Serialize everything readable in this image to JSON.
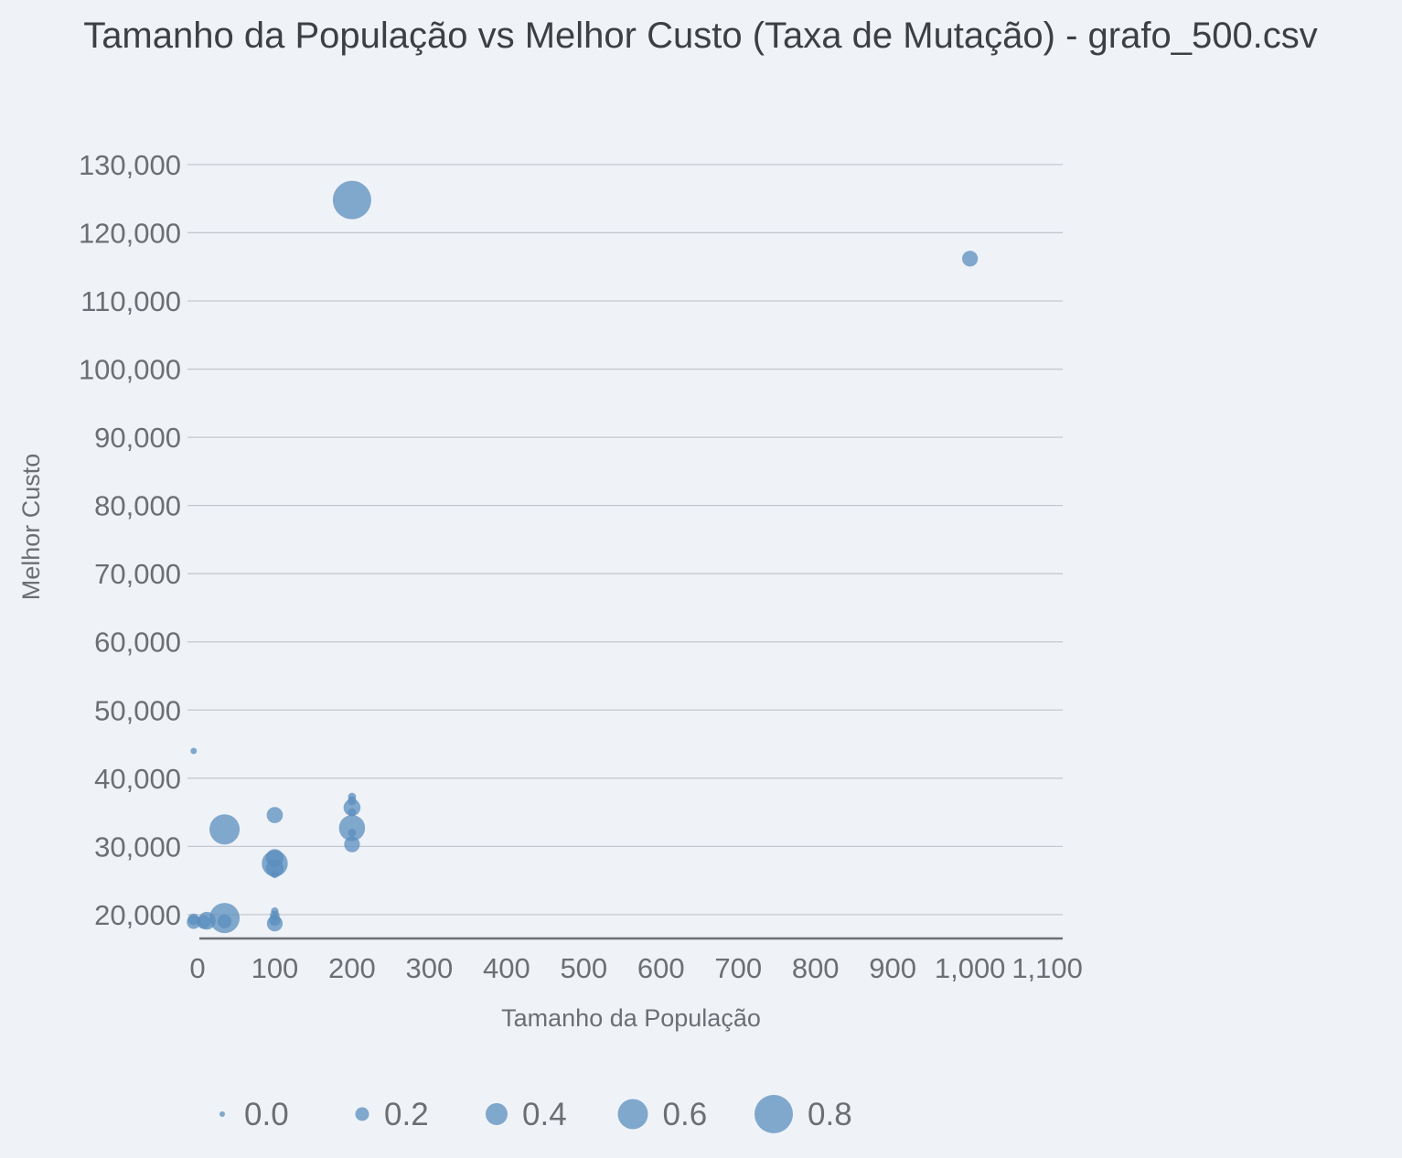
{
  "chart_data": {
    "type": "scatter",
    "title": "Tamanho da População vs Melhor Custo (Taxa de Mutação) - grafo_500.csv",
    "xlabel": "Tamanho da População",
    "ylabel": "Melhor Custo",
    "size_encoding": "Taxa de Mutação",
    "xlim": [
      -13,
      1120
    ],
    "ylim": [
      16500,
      132000
    ],
    "x_ticks": [
      0,
      100,
      200,
      300,
      400,
      500,
      600,
      700,
      800,
      900,
      1000,
      1100
    ],
    "x_tick_labels": [
      "0",
      "100",
      "200",
      "300",
      "400",
      "500",
      "600",
      "700",
      "800",
      "900",
      "1,000",
      "1,100"
    ],
    "y_ticks": [
      20000,
      30000,
      40000,
      50000,
      60000,
      70000,
      80000,
      90000,
      100000,
      110000,
      120000,
      130000
    ],
    "y_tick_labels": [
      "20,000",
      "30,000",
      "40,000",
      "50,000",
      "60,000",
      "70,000",
      "80,000",
      "90,000",
      "100,000",
      "110,000",
      "120,000",
      "130,000"
    ],
    "grid": true,
    "legend_position": "bottom",
    "legend": [
      {
        "label": "0.0",
        "size": 0.0
      },
      {
        "label": "0.2",
        "size": 0.2
      },
      {
        "label": "0.4",
        "size": 0.4
      },
      {
        "label": "0.6",
        "size": 0.6
      },
      {
        "label": "0.8",
        "size": 0.8
      }
    ],
    "point_color": "#5b8dbd",
    "points": [
      {
        "x": 200,
        "y": 124800,
        "size": 0.8
      },
      {
        "x": 1000,
        "y": 116200,
        "size": 0.25
      },
      {
        "x": -5,
        "y": 44000,
        "size": 0.02
      },
      {
        "x": 200,
        "y": 37300,
        "size": 0.06
      },
      {
        "x": 200,
        "y": 36700,
        "size": 0.08
      },
      {
        "x": 200,
        "y": 35700,
        "size": 0.28
      },
      {
        "x": 200,
        "y": 35000,
        "size": 0.06
      },
      {
        "x": 100,
        "y": 34600,
        "size": 0.26
      },
      {
        "x": 200,
        "y": 32700,
        "size": 0.5
      },
      {
        "x": 200,
        "y": 32000,
        "size": 0.06
      },
      {
        "x": 35,
        "y": 32500,
        "size": 0.6
      },
      {
        "x": 200,
        "y": 30300,
        "size": 0.25
      },
      {
        "x": 100,
        "y": 28300,
        "size": 0.3
      },
      {
        "x": 100,
        "y": 27500,
        "size": 0.5
      },
      {
        "x": 100,
        "y": 26800,
        "size": 0.3
      },
      {
        "x": 100,
        "y": 25900,
        "size": 0.05
      },
      {
        "x": 100,
        "y": 20500,
        "size": 0.05
      },
      {
        "x": 100,
        "y": 19900,
        "size": 0.1
      },
      {
        "x": 100,
        "y": 19200,
        "size": 0.15
      },
      {
        "x": 100,
        "y": 18700,
        "size": 0.25
      },
      {
        "x": 35,
        "y": 19500,
        "size": 0.6
      },
      {
        "x": 35,
        "y": 19000,
        "size": 0.2
      },
      {
        "x": 12,
        "y": 19100,
        "size": 0.3
      },
      {
        "x": 8,
        "y": 18900,
        "size": 0.2
      },
      {
        "x": -5,
        "y": 19300,
        "size": 0.15
      },
      {
        "x": -5,
        "y": 18900,
        "size": 0.2
      }
    ]
  }
}
